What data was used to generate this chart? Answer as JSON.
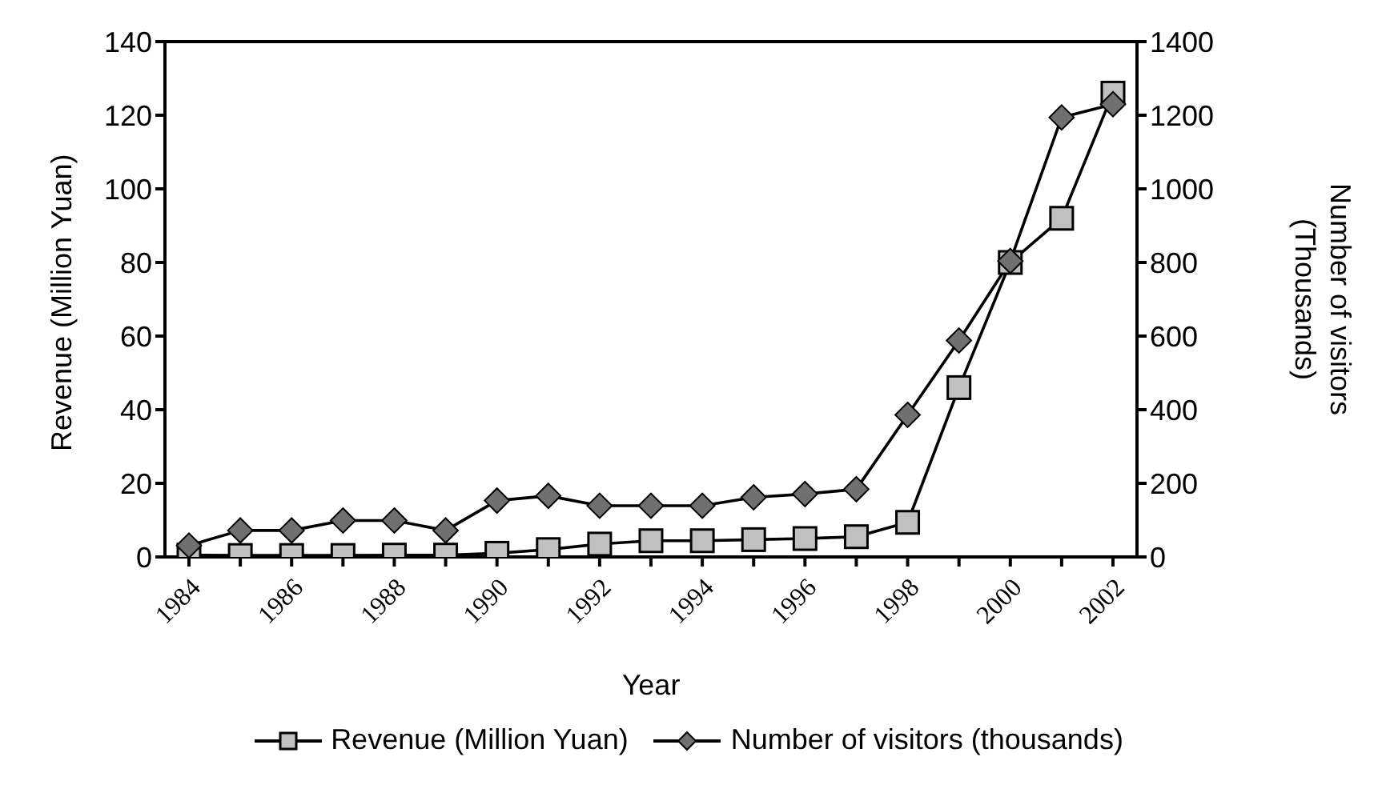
{
  "chart_data": {
    "type": "line",
    "xlabel": "Year",
    "ylabel": "Revenue (Million Yuan)",
    "y2label": "Number of visitors\n(Thousands)",
    "categories": [
      "1984",
      null,
      "1986",
      null,
      "1988",
      null,
      "1990",
      null,
      "1992",
      null,
      "1994",
      null,
      "1996",
      null,
      "1998",
      null,
      "2000",
      null,
      "2002"
    ],
    "series": [
      {
        "name": "Revenue (Million Yuan)",
        "color": "#c0c0c0",
        "marker": "square",
        "values": [
          0.5,
          0.4,
          0.4,
          0.4,
          0.5,
          0.5,
          1,
          2,
          3.5,
          4.4,
          4.4,
          4.7,
          5,
          5.5,
          9.4,
          46,
          80,
          92,
          126
        ]
      },
      {
        "name": "Number of visitors (thousands)",
        "color": "#707070",
        "marker": "diamond",
        "axis": "y2",
        "values": [
          31,
          72,
          72,
          99,
          99,
          72,
          153,
          166,
          139,
          139,
          139,
          162,
          171,
          184,
          386,
          588,
          804,
          1194,
          1230
        ]
      }
    ],
    "ylim": [
      0,
      140
    ],
    "yticks": [
      0,
      20,
      40,
      60,
      80,
      100,
      120,
      140
    ],
    "y2lim": [
      0,
      1400
    ],
    "y2ticks": [
      0,
      200,
      400,
      600,
      800,
      1000,
      1200,
      1400
    ],
    "grid": false,
    "legend": "bottom"
  }
}
